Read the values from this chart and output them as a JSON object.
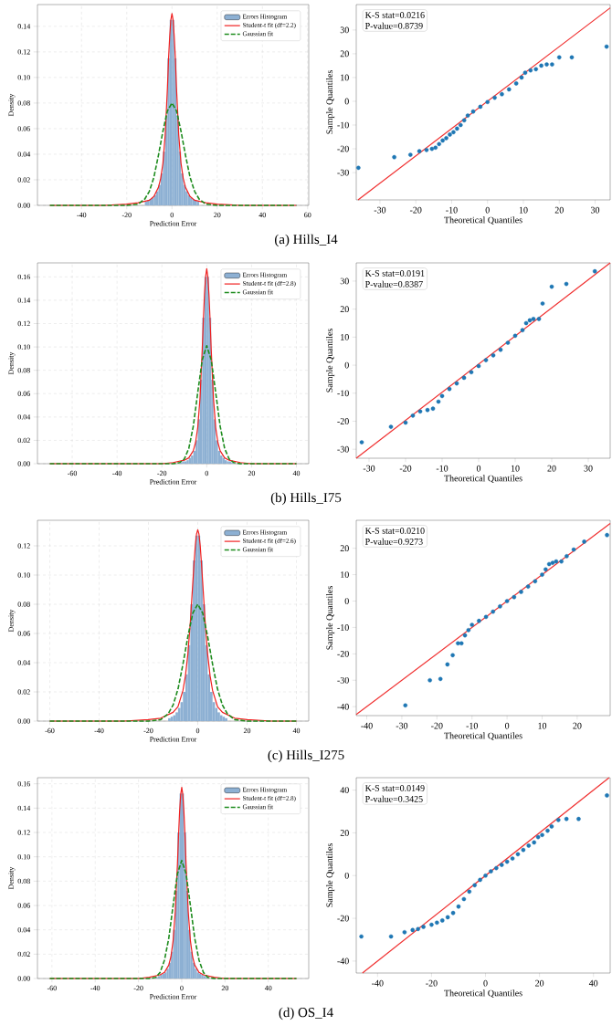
{
  "chart_data": [
    {
      "type": "histogram",
      "xlabel": "Prediction Error",
      "ylabel": "Density",
      "xlim": [
        -59.5,
        60.5
      ],
      "ylim": [
        0,
        0.157
      ],
      "xticks": [
        -40,
        -20,
        0,
        20,
        40,
        60
      ],
      "yticks": [
        {
          "value": 0,
          "label": "0.00"
        },
        {
          "value": 0.02,
          "label": "0.02"
        },
        {
          "value": 0.04,
          "label": "0.04"
        },
        {
          "value": 0.06,
          "label": "0.06"
        },
        {
          "value": 0.08,
          "label": "0.08"
        },
        {
          "value": 0.1,
          "label": "0.10"
        },
        {
          "value": 0.12,
          "label": "0.12"
        },
        {
          "value": 0.14,
          "label": "0.14"
        }
      ],
      "grid": true,
      "legend": "top right",
      "annotations": [
        "(a) Hills_I4"
      ],
      "series": [
        {
          "type": "histogram",
          "name": "Errors Histogram",
          "color": "#8db0d3",
          "bins": [
            -12,
            -11,
            -10,
            -9,
            -8,
            -7,
            -6,
            -5,
            -4,
            -3,
            -2,
            -1,
            0,
            1,
            2,
            3,
            4,
            5,
            6,
            7,
            8,
            9,
            10,
            11,
            12
          ],
          "values": [
            0.003,
            0.004,
            0.005,
            0.006,
            0.008,
            0.011,
            0.016,
            0.025,
            0.042,
            0.07,
            0.115,
            0.145,
            0.145,
            0.115,
            0.07,
            0.042,
            0.025,
            0.016,
            0.011,
            0.008,
            0.006,
            0.005,
            0.004,
            0.003
          ]
        },
        {
          "type": "line",
          "name": "Student-t fit (df=2.2)",
          "color": "#f02020",
          "x": [
            -54,
            -30,
            -20,
            -15,
            -10,
            -8,
            -6,
            -5,
            -4,
            -3,
            -2,
            -1.5,
            -1,
            -0.5,
            0,
            0.5,
            1,
            1.5,
            2,
            3,
            4,
            5,
            6,
            8,
            10,
            15,
            20,
            30,
            55
          ],
          "values": [
            0,
            0,
            0.001,
            0.002,
            0.004,
            0.007,
            0.014,
            0.021,
            0.033,
            0.055,
            0.092,
            0.115,
            0.132,
            0.145,
            0.15,
            0.145,
            0.132,
            0.115,
            0.092,
            0.055,
            0.033,
            0.021,
            0.014,
            0.007,
            0.004,
            0.002,
            0.001,
            0,
            0
          ]
        },
        {
          "type": "line",
          "name": "Gaussian fit",
          "color": "#1e8c1e",
          "line_style": "dashed",
          "x": [
            -54,
            -20,
            -15,
            -12,
            -10,
            -8,
            -6,
            -4,
            -2,
            0,
            2,
            4,
            6,
            8,
            10,
            12,
            15,
            20,
            55
          ],
          "values": [
            0,
            0,
            0.001,
            0.005,
            0.011,
            0.022,
            0.039,
            0.058,
            0.074,
            0.08,
            0.074,
            0.058,
            0.039,
            0.022,
            0.011,
            0.005,
            0.001,
            0,
            0
          ]
        }
      ]
    },
    {
      "type": "scatter",
      "xlabel": "Theoretical Quantiles",
      "ylabel": "Sample Quantiles",
      "xlim": [
        -36.6,
        34.2
      ],
      "ylim": [
        -41.5,
        40.7
      ],
      "xticks": [
        -30,
        -20,
        -10,
        0,
        10,
        20,
        30
      ],
      "yticks": [
        -30,
        -20,
        -10,
        0,
        10,
        20,
        30
      ],
      "annotations": [
        "K-S stat=0.0216",
        "P-value=0.8739"
      ],
      "series": [
        {
          "type": "scatter",
          "color": "#1f77b4",
          "marker": "circle",
          "x": [
            -36,
            -26,
            -21.5,
            -19,
            -17,
            -15.5,
            -14.5,
            -13.5,
            -12.5,
            -11.5,
            -10.5,
            -9.5,
            -8.5,
            -7.5,
            -6.5,
            -5.5,
            -4,
            -2,
            0,
            2,
            4,
            6,
            8,
            9.5,
            10.5,
            12,
            13.5,
            15,
            16.5,
            18,
            20,
            23.5,
            33.2
          ],
          "values": [
            -28,
            -23.5,
            -22.5,
            -21,
            -20.5,
            -20,
            -19.5,
            -18,
            -16.5,
            -15.5,
            -14,
            -13,
            -11.5,
            -10,
            -8,
            -6,
            -4.3,
            -2.3,
            -0.3,
            1.5,
            3,
            5,
            7.5,
            10,
            12,
            13,
            13.5,
            15,
            15.5,
            15.5,
            18.5,
            18.5,
            23
          ]
        },
        {
          "type": "line",
          "color": "#f03030",
          "marker": "none",
          "x": [
            -36.1,
            34.2
          ],
          "values": [
            -41.5,
            39.3
          ]
        }
      ]
    },
    {
      "type": "histogram",
      "xlabel": "Prediction Error",
      "ylabel": "Density",
      "xlim": [
        -75.5,
        45.5
      ],
      "ylim": [
        0,
        0.172
      ],
      "xticks": [
        -60,
        -40,
        -20,
        0,
        20,
        40
      ],
      "yticks": [
        {
          "value": 0,
          "label": "0.00"
        },
        {
          "value": 0.02,
          "label": "0.02"
        },
        {
          "value": 0.04,
          "label": "0.04"
        },
        {
          "value": 0.06,
          "label": "0.06"
        },
        {
          "value": 0.08,
          "label": "0.08"
        },
        {
          "value": 0.1,
          "label": "0.10"
        },
        {
          "value": 0.12,
          "label": "0.12"
        },
        {
          "value": 0.14,
          "label": "0.14"
        },
        {
          "value": 0.16,
          "label": "0.16"
        }
      ],
      "grid": true,
      "legend": "top right",
      "annotations": [
        "(b) Hills_I75"
      ],
      "series": [
        {
          "type": "histogram",
          "name": "Errors Histogram",
          "color": "#8db0d3",
          "bins": [
            -12,
            -11,
            -10,
            -9,
            -8,
            -7,
            -6,
            -5,
            -4,
            -3,
            -2,
            -1,
            0,
            1,
            2,
            3,
            4,
            5,
            6,
            7,
            8,
            9,
            10,
            11,
            12
          ],
          "values": [
            0.001,
            0.002,
            0.002,
            0.003,
            0.005,
            0.007,
            0.011,
            0.02,
            0.038,
            0.072,
            0.125,
            0.16,
            0.16,
            0.125,
            0.072,
            0.038,
            0.02,
            0.011,
            0.007,
            0.005,
            0.003,
            0.002,
            0.002,
            0.001
          ]
        },
        {
          "type": "line",
          "name": "Student-t fit (df=2.8)",
          "color": "#f02020",
          "x": [
            -70,
            -30,
            -20,
            -15,
            -10,
            -8,
            -6,
            -5,
            -4,
            -3,
            -2,
            -1.5,
            -1,
            -0.5,
            0,
            0.5,
            1,
            1.5,
            2,
            3,
            4,
            5,
            6,
            8,
            10,
            15,
            20,
            30,
            40
          ],
          "values": [
            0,
            0,
            0,
            0.001,
            0.003,
            0.005,
            0.011,
            0.018,
            0.031,
            0.056,
            0.098,
            0.123,
            0.145,
            0.16,
            0.167,
            0.16,
            0.145,
            0.123,
            0.098,
            0.056,
            0.031,
            0.018,
            0.011,
            0.005,
            0.003,
            0.001,
            0,
            0,
            0
          ]
        },
        {
          "type": "line",
          "name": "Gaussian fit",
          "color": "#1e8c1e",
          "line_style": "dashed",
          "x": [
            -70,
            -20,
            -15,
            -12,
            -10,
            -8,
            -6,
            -4,
            -2,
            0,
            2,
            4,
            6,
            8,
            10,
            12,
            15,
            20,
            40
          ],
          "values": [
            0,
            0,
            0,
            0.001,
            0.004,
            0.013,
            0.032,
            0.061,
            0.089,
            0.101,
            0.089,
            0.061,
            0.032,
            0.013,
            0.004,
            0.001,
            0,
            0,
            0
          ]
        }
      ]
    },
    {
      "type": "scatter",
      "xlabel": "Theoretical Quantiles",
      "ylabel": "Sample Quantiles",
      "xlim": [
        -33.5,
        36
      ],
      "ylim": [
        -33.2,
        36.5
      ],
      "xticks": [
        -30,
        -20,
        -10,
        0,
        10,
        20,
        30
      ],
      "yticks": [
        -30,
        -20,
        -10,
        0,
        10,
        20,
        30
      ],
      "annotations": [
        "K-S stat=0.0191",
        "P-value=0.8387"
      ],
      "series": [
        {
          "type": "scatter",
          "color": "#1f77b4",
          "marker": "circle",
          "x": [
            -32,
            -24,
            -20,
            -18,
            -16,
            -14,
            -12.5,
            -11,
            -10,
            -8,
            -6,
            -4,
            -2,
            0,
            2,
            4,
            6,
            8,
            10,
            12,
            13,
            14,
            15,
            16.5,
            17.5,
            20,
            24,
            31.8
          ],
          "values": [
            -27.5,
            -22,
            -20.5,
            -18,
            -16.5,
            -16,
            -15.5,
            -13,
            -11,
            -8.5,
            -6.5,
            -4.5,
            -2.5,
            -0.3,
            1.8,
            3.5,
            5.5,
            8,
            10.5,
            12.5,
            15,
            16,
            16.5,
            16.5,
            22,
            28,
            29,
            33.5
          ]
        },
        {
          "type": "line",
          "color": "#f03030",
          "marker": "none",
          "x": [
            -33.5,
            36
          ],
          "values": [
            -33.2,
            36.5
          ]
        }
      ]
    },
    {
      "type": "histogram",
      "xlabel": "Prediction Error",
      "ylabel": "Density",
      "xlim": [
        -65,
        45
      ],
      "ylim": [
        0,
        0.1375
      ],
      "xticks": [
        -60,
        -40,
        -20,
        0,
        20,
        40
      ],
      "yticks": [
        {
          "value": 0,
          "label": "0.00"
        },
        {
          "value": 0.02,
          "label": "0.02"
        },
        {
          "value": 0.04,
          "label": "0.04"
        },
        {
          "value": 0.06,
          "label": "0.06"
        },
        {
          "value": 0.08,
          "label": "0.08"
        },
        {
          "value": 0.1,
          "label": "0.10"
        },
        {
          "value": 0.12,
          "label": "0.12"
        }
      ],
      "grid": true,
      "legend": "top right",
      "annotations": [
        "(c) Hills_I275"
      ],
      "series": [
        {
          "type": "histogram",
          "name": "Errors Histogram",
          "color": "#8db0d3",
          "bins": [
            -12,
            -11,
            -10,
            -9,
            -8,
            -7,
            -6,
            -5,
            -4,
            -3,
            -2,
            -1,
            0,
            1,
            2,
            3,
            4,
            5,
            6,
            7,
            8,
            9,
            10,
            11,
            12
          ],
          "values": [
            0.002,
            0.003,
            0.004,
            0.006,
            0.009,
            0.013,
            0.02,
            0.032,
            0.052,
            0.08,
            0.11,
            0.127,
            0.127,
            0.11,
            0.08,
            0.052,
            0.032,
            0.02,
            0.013,
            0.009,
            0.006,
            0.004,
            0.003,
            0.002
          ]
        },
        {
          "type": "line",
          "name": "Student-t fit (df=2.6)",
          "color": "#f02020",
          "x": [
            -60,
            -30,
            -20,
            -15,
            -10,
            -8,
            -6,
            -5,
            -4,
            -3,
            -2,
            -1.5,
            -1,
            -0.5,
            0,
            0.5,
            1,
            1.5,
            2,
            3,
            4,
            5,
            6,
            8,
            10,
            15,
            20,
            30,
            40
          ],
          "values": [
            0,
            0,
            0.001,
            0.002,
            0.006,
            0.01,
            0.021,
            0.031,
            0.046,
            0.068,
            0.095,
            0.108,
            0.12,
            0.128,
            0.131,
            0.128,
            0.12,
            0.108,
            0.095,
            0.068,
            0.046,
            0.031,
            0.021,
            0.01,
            0.006,
            0.002,
            0.001,
            0,
            0
          ]
        },
        {
          "type": "line",
          "name": "Gaussian fit",
          "color": "#1e8c1e",
          "line_style": "dashed",
          "x": [
            -60,
            -20,
            -15,
            -12,
            -10,
            -8,
            -6,
            -4,
            -2,
            0,
            2,
            4,
            6,
            8,
            10,
            12,
            15,
            20,
            40
          ],
          "values": [
            0,
            0,
            0.001,
            0.005,
            0.011,
            0.022,
            0.039,
            0.058,
            0.074,
            0.08,
            0.074,
            0.058,
            0.039,
            0.022,
            0.011,
            0.005,
            0.001,
            0,
            0
          ]
        }
      ]
    },
    {
      "type": "scatter",
      "xlabel": "Theoretical Quantiles",
      "ylabel": "Sample Quantiles",
      "xlim": [
        -43,
        29.4
      ],
      "ylim": [
        -43.4,
        30.6
      ],
      "xticks": [
        -40,
        -30,
        -20,
        -10,
        0,
        10,
        20
      ],
      "yticks": [
        -40,
        -30,
        -20,
        -10,
        0,
        10,
        20
      ],
      "annotations": [
        "K-S stat=0.0210",
        "P-value=0.9273"
      ],
      "series": [
        {
          "type": "scatter",
          "color": "#1f77b4",
          "marker": "circle",
          "x": [
            -29,
            -22,
            -19,
            -17,
            -15.5,
            -14,
            -13,
            -12,
            -11,
            -10,
            -8,
            -6,
            -4,
            -2,
            0,
            2,
            4,
            6,
            8,
            10,
            11,
            12,
            13,
            14,
            15.5,
            17,
            19,
            22,
            28.5
          ],
          "values": [
            -39.5,
            -30,
            -29.5,
            -24,
            -20.5,
            -16,
            -16,
            -13,
            -11,
            -9,
            -7.5,
            -6,
            -4,
            -2,
            0,
            1.5,
            3.5,
            5.5,
            7.5,
            10,
            12,
            14,
            14.5,
            15,
            15,
            17,
            19.5,
            22.5,
            25
          ]
        },
        {
          "type": "line",
          "color": "#f03030",
          "marker": "none",
          "x": [
            -43,
            29.4
          ],
          "values": [
            -43,
            29.4
          ]
        }
      ]
    },
    {
      "type": "histogram",
      "xlabel": "Prediction Error",
      "ylabel": "Density",
      "xlim": [
        -66.7,
        58.7
      ],
      "ylim": [
        0,
        0.165
      ],
      "xticks": [
        -60,
        -40,
        -20,
        0,
        20,
        40
      ],
      "yticks": [
        {
          "value": 0,
          "label": "0.00"
        },
        {
          "value": 0.02,
          "label": "0.02"
        },
        {
          "value": 0.04,
          "label": "0.04"
        },
        {
          "value": 0.06,
          "label": "0.06"
        },
        {
          "value": 0.08,
          "label": "0.08"
        },
        {
          "value": 0.1,
          "label": "0.10"
        },
        {
          "value": 0.12,
          "label": "0.12"
        },
        {
          "value": 0.14,
          "label": "0.14"
        },
        {
          "value": 0.16,
          "label": "0.16"
        }
      ],
      "grid": true,
      "legend": "top right",
      "annotations": [
        "(d) OS_I4"
      ],
      "series": [
        {
          "type": "histogram",
          "name": "Errors Histogram",
          "color": "#8db0d3",
          "bins": [
            -12,
            -11,
            -10,
            -9,
            -8,
            -7,
            -6,
            -5,
            -4,
            -3,
            -2,
            -1,
            0,
            1,
            2,
            3,
            4,
            5,
            6,
            7,
            8,
            9,
            10,
            11,
            12
          ],
          "values": [
            0.001,
            0.002,
            0.003,
            0.004,
            0.005,
            0.008,
            0.013,
            0.022,
            0.04,
            0.072,
            0.12,
            0.152,
            0.152,
            0.12,
            0.072,
            0.04,
            0.022,
            0.013,
            0.008,
            0.005,
            0.004,
            0.003,
            0.002,
            0.001
          ]
        },
        {
          "type": "line",
          "name": "Student-t fit (df=2.8)",
          "color": "#f02020",
          "x": [
            -61,
            -30,
            -20,
            -15,
            -10,
            -8,
            -6,
            -5,
            -4,
            -3,
            -2,
            -1.5,
            -1,
            -0.5,
            0,
            0.5,
            1,
            1.5,
            2,
            3,
            4,
            5,
            6,
            8,
            10,
            15,
            20,
            30,
            53
          ],
          "values": [
            0,
            0,
            0,
            0.001,
            0.003,
            0.005,
            0.011,
            0.018,
            0.031,
            0.055,
            0.094,
            0.117,
            0.137,
            0.151,
            0.157,
            0.151,
            0.137,
            0.117,
            0.094,
            0.055,
            0.031,
            0.018,
            0.011,
            0.005,
            0.003,
            0.001,
            0,
            0,
            0
          ]
        },
        {
          "type": "line",
          "name": "Gaussian fit",
          "color": "#1e8c1e",
          "line_style": "dashed",
          "x": [
            -61,
            -20,
            -15,
            -12,
            -10,
            -8,
            -6,
            -4,
            -2,
            0,
            2,
            4,
            6,
            8,
            10,
            12,
            15,
            20,
            53
          ],
          "values": [
            0,
            0,
            0,
            0.001,
            0.005,
            0.015,
            0.033,
            0.06,
            0.086,
            0.097,
            0.086,
            0.06,
            0.033,
            0.015,
            0.005,
            0.001,
            0,
            0,
            0
          ]
        }
      ]
    },
    {
      "type": "scatter",
      "xlabel": "Theoretical Quantiles",
      "ylabel": "Sample Quantiles",
      "xlim": [
        -47.9,
        46.2
      ],
      "ylim": [
        -45.6,
        45.8
      ],
      "xticks": [
        -40,
        -20,
        0,
        20,
        40
      ],
      "yticks": [
        -40,
        -20,
        0,
        20,
        40
      ],
      "annotations": [
        "K-S stat=0.0149",
        "P-value=0.3425"
      ],
      "series": [
        {
          "type": "scatter",
          "color": "#1f77b4",
          "marker": "circle",
          "x": [
            -46,
            -35,
            -30,
            -27,
            -25,
            -23,
            -20,
            -18,
            -16,
            -14,
            -12,
            -10,
            -8,
            -6,
            -4,
            -2,
            0,
            2,
            4,
            6,
            8,
            10,
            12,
            14,
            16,
            18,
            19.5,
            21,
            23,
            24.5,
            27,
            30,
            34.5,
            45
          ],
          "values": [
            -28.5,
            -28.5,
            -26.5,
            -25.5,
            -25,
            -24,
            -23,
            -22,
            -21,
            -19.5,
            -17.5,
            -14.5,
            -11,
            -7.5,
            -4.5,
            -2,
            0,
            2,
            3.5,
            5,
            6.5,
            8,
            10,
            12,
            14,
            15.5,
            18,
            19,
            21,
            23,
            26,
            26.5,
            26.5,
            37.5
          ]
        },
        {
          "type": "line",
          "color": "#f03030",
          "marker": "none",
          "x": [
            -45.6,
            45.8
          ],
          "values": [
            -45.6,
            45.8
          ]
        }
      ]
    }
  ]
}
